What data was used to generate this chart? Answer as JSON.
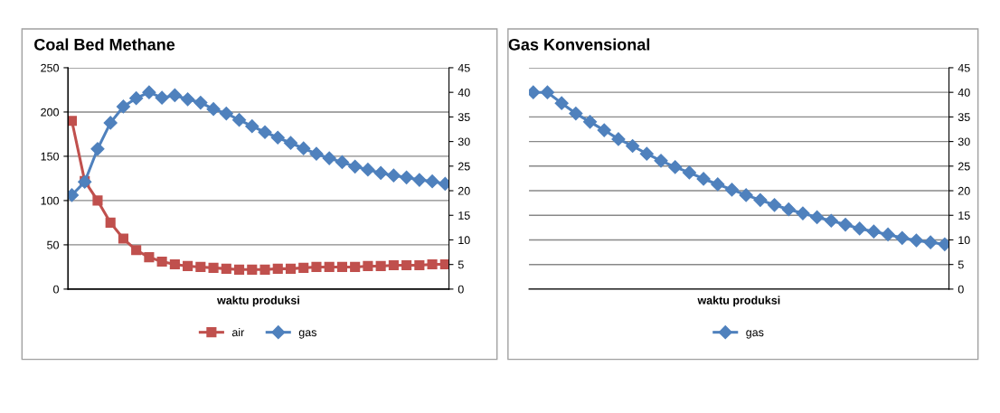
{
  "chart_data": [
    {
      "type": "line",
      "title": "Coal Bed Methane",
      "xlabel": "waktu produksi",
      "categories": [
        null,
        null,
        null,
        null,
        null,
        null,
        null,
        null,
        null,
        null,
        null,
        null,
        null,
        null,
        null,
        null,
        null,
        null,
        null,
        null,
        null,
        null,
        null,
        null,
        null,
        null,
        null,
        null,
        null,
        null
      ],
      "series": [
        {
          "name": "air",
          "color": "#c0504d",
          "marker": "square",
          "values": [
            190,
            122,
            100,
            75,
            57,
            44,
            36,
            31,
            28,
            26,
            25,
            24,
            23,
            22,
            22,
            22,
            23,
            23,
            24,
            25,
            25,
            25,
            25,
            26,
            26,
            27,
            27,
            27,
            28,
            28
          ]
        },
        {
          "name": "gas",
          "color": "#4f81bd",
          "marker": "diamond",
          "axis": "y2",
          "values": [
            19.1,
            21.8,
            28.5,
            33.8,
            37.1,
            38.8,
            40,
            38.9,
            39.4,
            38.6,
            37.9,
            36.6,
            35.7,
            34.4,
            33.1,
            31.9,
            30.8,
            29.7,
            28.6,
            27.5,
            26.6,
            25.8,
            24.9,
            24.3,
            23.6,
            23.1,
            22.7,
            22.2,
            21.9,
            21.4
          ]
        }
      ],
      "ylim": [
        0,
        250
      ],
      "yticks": [
        0,
        50,
        100,
        150,
        200,
        250
      ],
      "y2lim": [
        0,
        45
      ],
      "y2ticks": [
        0,
        5,
        10,
        15,
        20,
        25,
        30,
        35,
        40,
        45
      ],
      "grid": "y",
      "legend": "bottom"
    },
    {
      "type": "line",
      "title": "Gas Konvensional",
      "xlabel": "waktu produksi",
      "categories": [
        null,
        null,
        null,
        null,
        null,
        null,
        null,
        null,
        null,
        null,
        null,
        null,
        null,
        null,
        null,
        null,
        null,
        null,
        null,
        null,
        null,
        null,
        null,
        null,
        null,
        null,
        null,
        null,
        null,
        null
      ],
      "series": [
        {
          "name": "gas",
          "color": "#4f81bd",
          "marker": "diamond",
          "values": [
            40,
            40,
            37.8,
            35.7,
            34,
            32.3,
            30.5,
            29.1,
            27.5,
            26.1,
            24.8,
            23.7,
            22.4,
            21.3,
            20.2,
            19.1,
            18.1,
            17.1,
            16.2,
            15.4,
            14.6,
            13.9,
            13.1,
            12.3,
            11.7,
            11.1,
            10.4,
            9.9,
            9.5,
            9.1
          ]
        }
      ],
      "ylim": [
        0,
        45
      ],
      "yticks": [
        0,
        5,
        10,
        15,
        20,
        25,
        30,
        35,
        40,
        45
      ],
      "grid": "y",
      "legend": "bottom"
    }
  ]
}
